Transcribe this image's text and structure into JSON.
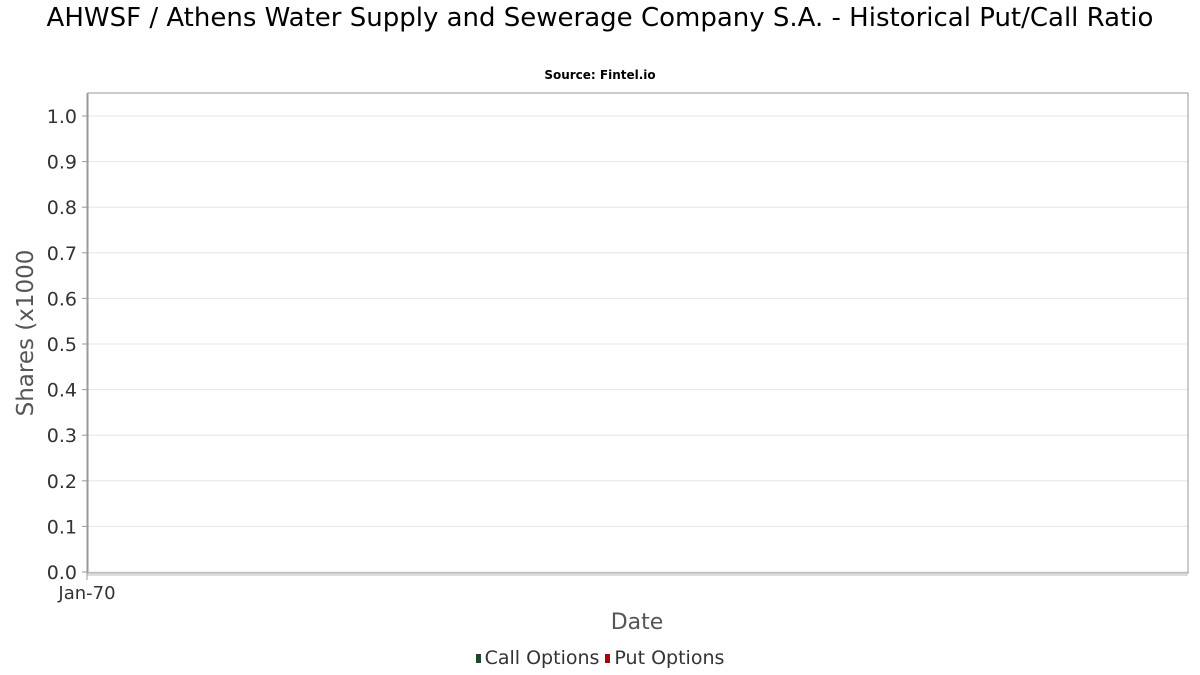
{
  "chart_data": {
    "type": "line",
    "title": "AHWSF / Athens Water Supply and Sewerage Company S.A. - Historical Put/Call Ratio",
    "subtitle": "Source: Fintel.io",
    "xlabel": "Date",
    "ylabel": "Shares (x1000",
    "x_tick_labels": [
      "Jan-70"
    ],
    "y_ticks": [
      "0.0",
      "0.1",
      "0.2",
      "0.3",
      "0.4",
      "0.5",
      "0.6",
      "0.7",
      "0.8",
      "0.9",
      "1.0"
    ],
    "ylim": [
      0,
      1
    ],
    "grid": true,
    "legend_position": "bottom",
    "series": [
      {
        "name": "Call Options",
        "color": "#1a4a2a",
        "values": []
      },
      {
        "name": "Put Options",
        "color": "#aa0000",
        "values": []
      }
    ]
  }
}
